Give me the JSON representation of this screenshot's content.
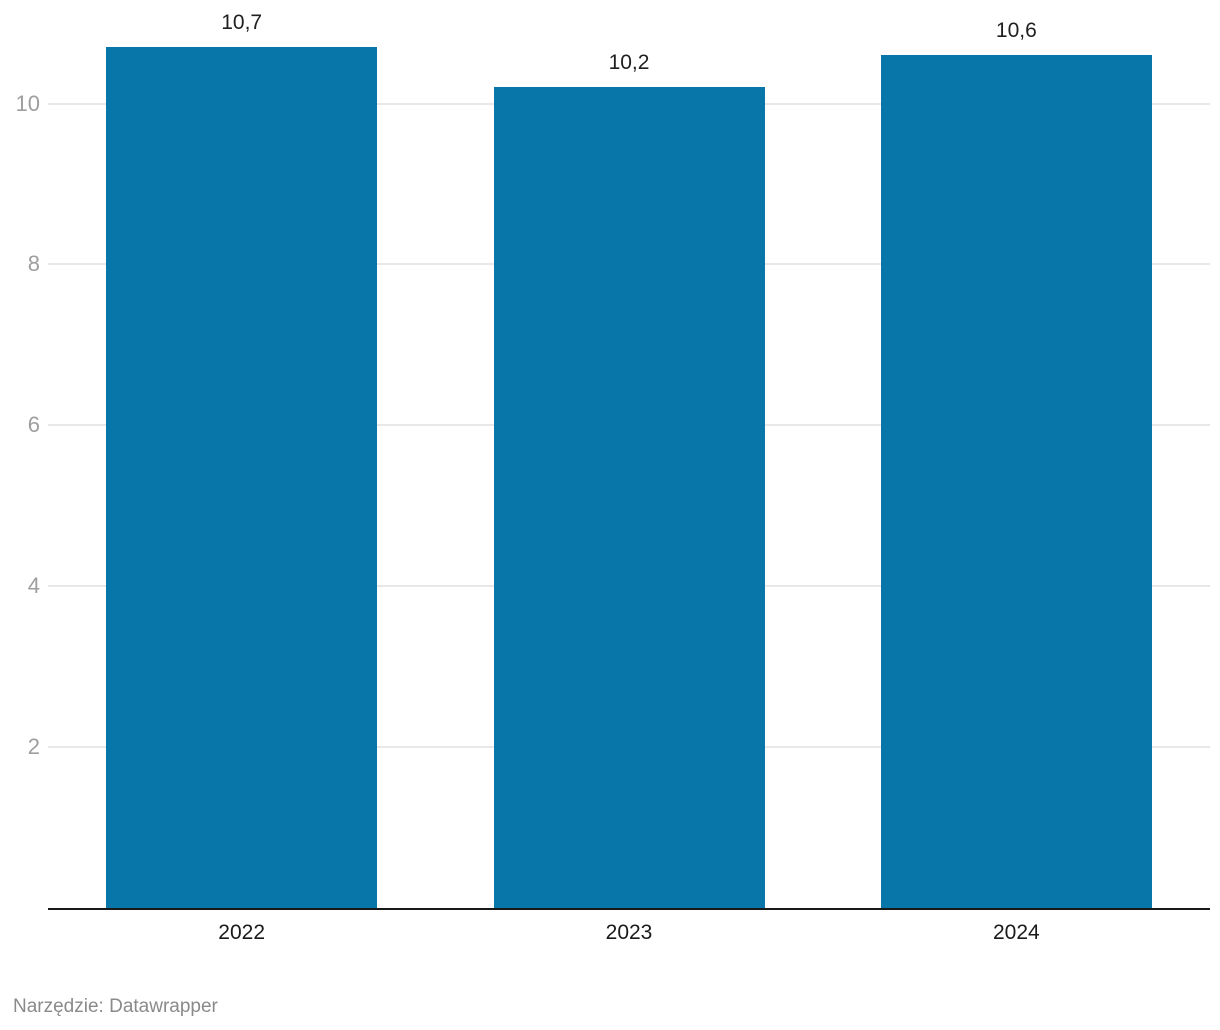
{
  "chart_data": {
    "type": "bar",
    "title": "",
    "xlabel": "",
    "ylabel": "",
    "categories": [
      "2022",
      "2023",
      "2024"
    ],
    "values": [
      10.7,
      10.2,
      10.6
    ],
    "value_labels": [
      "10,7",
      "10,2",
      "10,6"
    ],
    "y_ticks": [
      2,
      4,
      6,
      8,
      10
    ],
    "y_tick_labels": [
      "2",
      "4",
      "6",
      "8",
      "10"
    ],
    "ylim": [
      0,
      10.7
    ],
    "grid": true,
    "legend_position": "none",
    "bar_color": "#0876a8"
  },
  "colors": {
    "bar": "#0876a8",
    "gridline": "#e8e8e8",
    "axis_line": "#191919",
    "y_tick_label": "#9e9e9e",
    "value_label": "#1f1f1f",
    "x_tick_label": "#1a1a1a",
    "footer_text": "#8a8a8a",
    "background": "#ffffff"
  },
  "footer": {
    "text": "Narzędzie: Datawrapper"
  }
}
